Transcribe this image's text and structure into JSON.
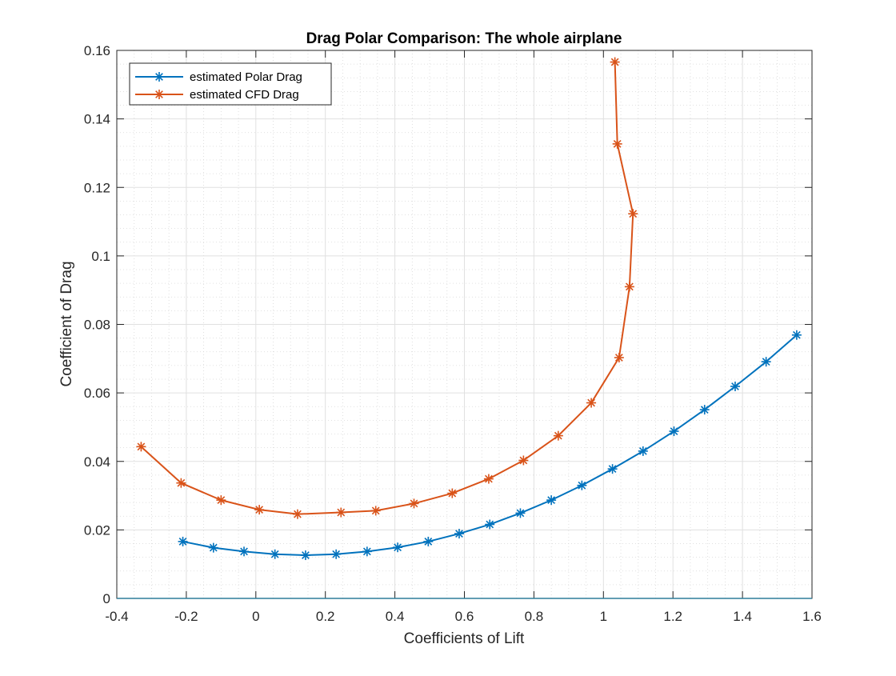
{
  "chart_data": {
    "type": "line",
    "title": "Drag Polar Comparison: The whole airplane",
    "xlabel": "Coefficients of Lift",
    "ylabel": "Coefficient of Drag",
    "xlim": [
      -0.4,
      1.6
    ],
    "ylim": [
      0,
      0.16
    ],
    "x_ticks": [
      -0.4,
      -0.2,
      0,
      0.2,
      0.4,
      0.6,
      0.8,
      1,
      1.2,
      1.4,
      1.6
    ],
    "y_ticks": [
      0,
      0.02,
      0.04,
      0.06,
      0.08,
      0.1,
      0.12,
      0.14,
      0.16
    ],
    "x_tick_labels": [
      "-0.4",
      "-0.2",
      "0",
      "0.2",
      "0.4",
      "0.6",
      "0.8",
      "1",
      "1.2",
      "1.4",
      "1.6"
    ],
    "y_tick_labels": [
      "0",
      "0.02",
      "0.04",
      "0.06",
      "0.08",
      "0.1",
      "0.12",
      "0.14",
      "0.16"
    ],
    "grid": true,
    "minor_grid": true,
    "legend": "top-left",
    "series": [
      {
        "name": "estimated Polar Drag",
        "color": "#0072BD",
        "marker": "asterisk",
        "points": [
          [
            -0.21,
            0.0166
          ],
          [
            -0.122,
            0.0148
          ],
          [
            -0.034,
            0.0137
          ],
          [
            0.055,
            0.0129
          ],
          [
            0.143,
            0.0126
          ],
          [
            0.231,
            0.0129
          ],
          [
            0.32,
            0.0137
          ],
          [
            0.408,
            0.0149
          ],
          [
            0.496,
            0.0166
          ],
          [
            0.585,
            0.0189
          ],
          [
            0.673,
            0.0216
          ],
          [
            0.761,
            0.0249
          ],
          [
            0.85,
            0.0287
          ],
          [
            0.938,
            0.033
          ],
          [
            1.026,
            0.0378
          ],
          [
            1.114,
            0.043
          ],
          [
            1.203,
            0.0488
          ],
          [
            1.291,
            0.0551
          ],
          [
            1.379,
            0.0619
          ],
          [
            1.468,
            0.0691
          ],
          [
            1.556,
            0.0769
          ]
        ]
      },
      {
        "name": "estimated CFD Drag",
        "color": "#D95319",
        "marker": "asterisk",
        "points": [
          [
            -0.33,
            0.0443
          ],
          [
            -0.215,
            0.0337
          ],
          [
            -0.1,
            0.0287
          ],
          [
            0.01,
            0.0259
          ],
          [
            0.12,
            0.0246
          ],
          [
            0.245,
            0.0251
          ],
          [
            0.345,
            0.0256
          ],
          [
            0.455,
            0.0277
          ],
          [
            0.565,
            0.0307
          ],
          [
            0.67,
            0.0349
          ],
          [
            0.77,
            0.0403
          ],
          [
            0.87,
            0.0475
          ],
          [
            0.965,
            0.0571
          ],
          [
            1.045,
            0.0703
          ],
          [
            1.075,
            0.091
          ],
          [
            1.085,
            0.1123
          ],
          [
            1.04,
            0.1327
          ],
          [
            1.033,
            0.1566
          ]
        ]
      }
    ]
  }
}
